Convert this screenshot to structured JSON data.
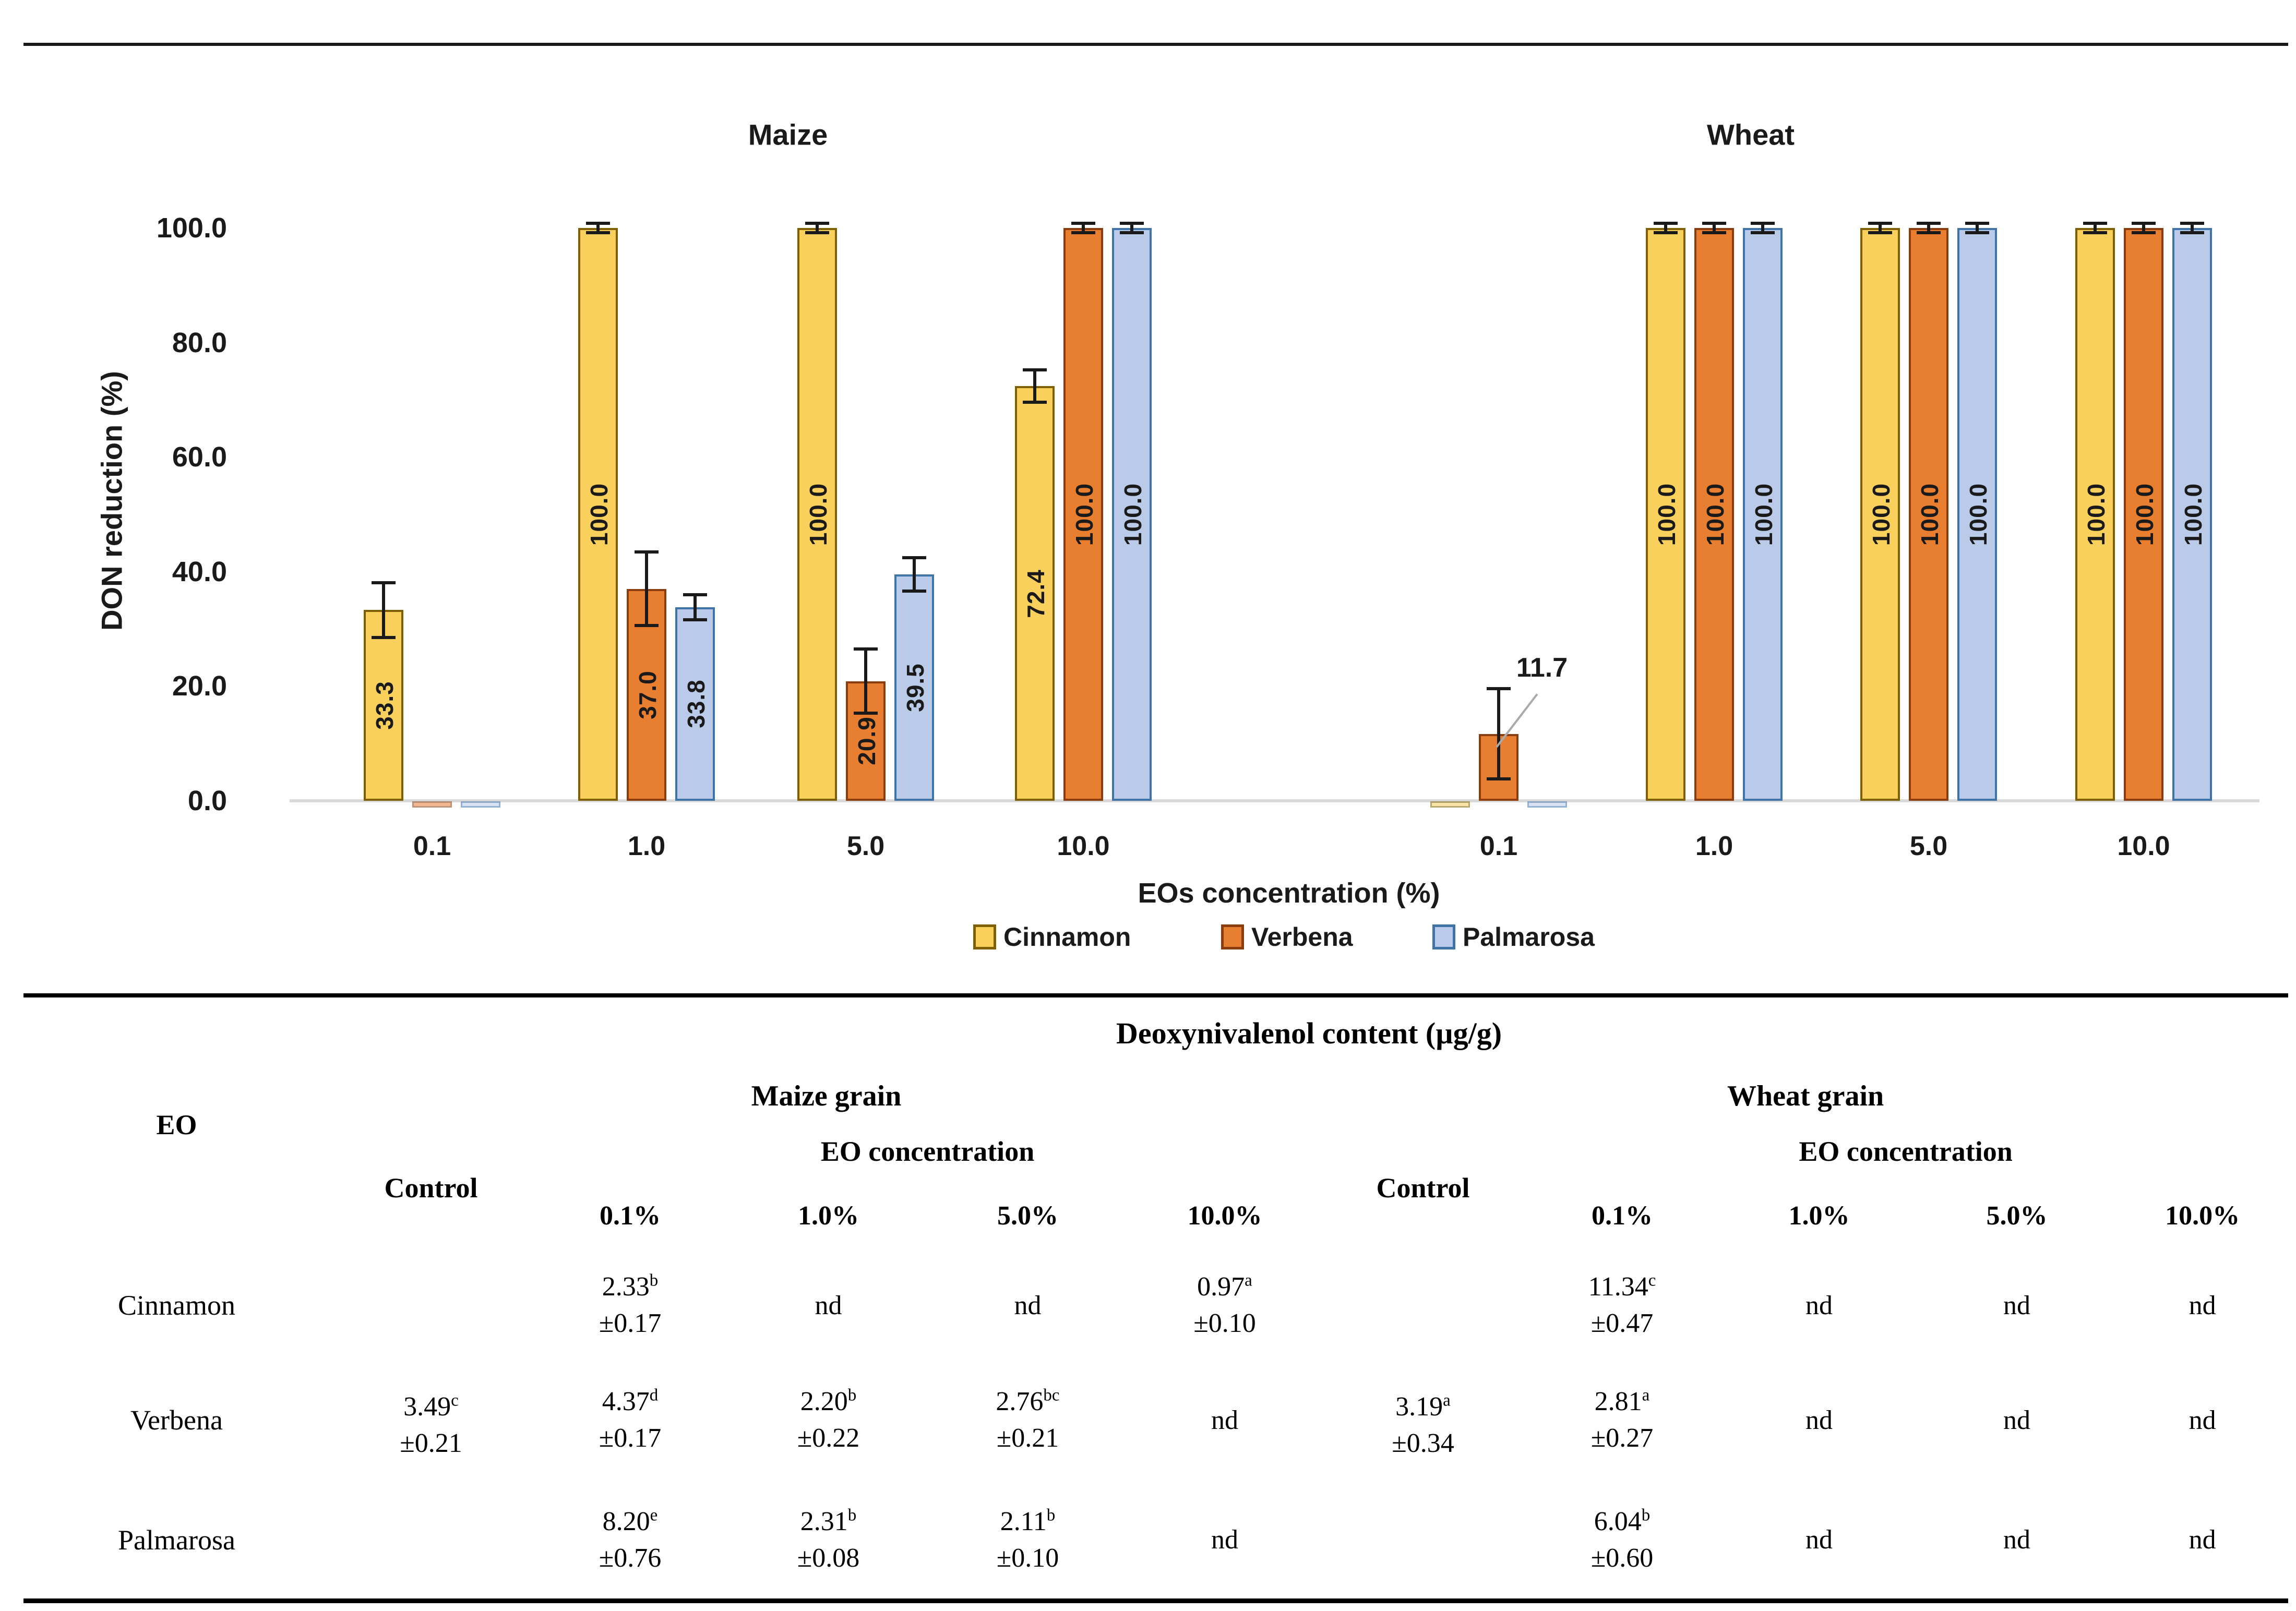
{
  "chart_data": {
    "type": "bar",
    "title": "",
    "ylabel": "DON reduction (%)",
    "xlabel": "EOs concentration (%)",
    "ylim": [
      0,
      100
    ],
    "yticks": [
      0,
      20,
      40,
      60,
      80,
      100
    ],
    "ytick_labels": [
      "0.0",
      "20.0",
      "40.0",
      "60.0",
      "80.0",
      "100.0"
    ],
    "grid": false,
    "legend": [
      "Cinnamon",
      "Verbena",
      "Palmarosa"
    ],
    "legend_position": "bottom",
    "groups": [
      {
        "label": "Maize",
        "categories": [
          "0.1",
          "1.0",
          "5.0",
          "10.0"
        ],
        "series": [
          {
            "name": "Cinnamon",
            "values": [
              33.3,
              100.0,
              100.0,
              72.4
            ],
            "errors": [
              4.8,
              0.8,
              0.8,
              2.8
            ]
          },
          {
            "name": "Verbena",
            "values": [
              0,
              37.0,
              20.9,
              100.0
            ],
            "errors": [
              0,
              6.4,
              5.6,
              0.8
            ]
          },
          {
            "name": "Palmarosa",
            "values": [
              0,
              33.8,
              39.5,
              100.0
            ],
            "errors": [
              0,
              2.2,
              2.9,
              0.8
            ]
          }
        ]
      },
      {
        "label": "Wheat",
        "categories": [
          "0.1",
          "1.0",
          "5.0",
          "10.0"
        ],
        "series": [
          {
            "name": "Cinnamon",
            "values": [
              0,
              100.0,
              100.0,
              100.0
            ],
            "errors": [
              0,
              0.8,
              0.8,
              0.8
            ]
          },
          {
            "name": "Verbena",
            "values": [
              11.7,
              100.0,
              100.0,
              100.0
            ],
            "errors": [
              7.9,
              0.8,
              0.8,
              0.8
            ]
          },
          {
            "name": "Palmarosa",
            "values": [
              0,
              100.0,
              100.0,
              100.0
            ],
            "errors": [
              0,
              0.8,
              0.8,
              0.8
            ]
          }
        ]
      }
    ],
    "colors": [
      {
        "name": "cinnamon",
        "fill": "#F9D05B",
        "border": "#7F6000"
      },
      {
        "name": "verbena",
        "fill": "#E87E2F",
        "border": "#8C3D0E"
      },
      {
        "name": "palmarosa",
        "fill": "#B9CBE8",
        "border": "#3E74A8"
      }
    ],
    "error_bar_color": "#1a1a1a",
    "axis_line_color": "#d9d9d9"
  },
  "table": {
    "eo_col_header": "EO",
    "span_header": "Deoxynivalenol content (µg/g)",
    "maize_header": "Maize grain",
    "wheat_header": "Wheat grain",
    "control_header": "Control",
    "conc_group_header": "EO concentration",
    "conc_cols": [
      "0.1%",
      "1.0%",
      "5.0%",
      "10.0%"
    ],
    "maize_control": {
      "v": "3.49",
      "s": "c",
      "e": "±0.21"
    },
    "wheat_control": {
      "v": "3.19",
      "s": "a",
      "e": "±0.34"
    },
    "rows": [
      {
        "eo": "Cinnamon",
        "maize": [
          {
            "v": "2.33",
            "s": "b",
            "e": "±0.17"
          },
          {
            "v": "nd"
          },
          {
            "v": "nd"
          },
          {
            "v": "0.97",
            "s": "a",
            "e": "±0.10"
          }
        ],
        "wheat": [
          {
            "v": "11.34",
            "s": "c",
            "e": "±0.47"
          },
          {
            "v": "nd"
          },
          {
            "v": "nd"
          },
          {
            "v": "nd"
          }
        ]
      },
      {
        "eo": "Verbena",
        "maize": [
          {
            "v": "4.37",
            "s": "d",
            "e": "±0.17"
          },
          {
            "v": "2.20",
            "s": "b",
            "e": "±0.22"
          },
          {
            "v": "2.76",
            "s": "bc",
            "e": "±0.21"
          },
          {
            "v": "nd"
          }
        ],
        "wheat": [
          {
            "v": "2.81",
            "s": "a",
            "e": "±0.27"
          },
          {
            "v": "nd"
          },
          {
            "v": "nd"
          },
          {
            "v": "nd"
          }
        ]
      },
      {
        "eo": "Palmarosa",
        "maize": [
          {
            "v": "8.20",
            "s": "e",
            "e": "±0.76"
          },
          {
            "v": "2.31",
            "s": "b",
            "e": "±0.08"
          },
          {
            "v": "2.11",
            "s": "b",
            "e": "±0.10"
          },
          {
            "v": "nd"
          }
        ],
        "wheat": [
          {
            "v": "6.04",
            "s": "b",
            "e": "±0.60"
          },
          {
            "v": "nd"
          },
          {
            "v": "nd"
          },
          {
            "v": "nd"
          }
        ]
      }
    ]
  }
}
